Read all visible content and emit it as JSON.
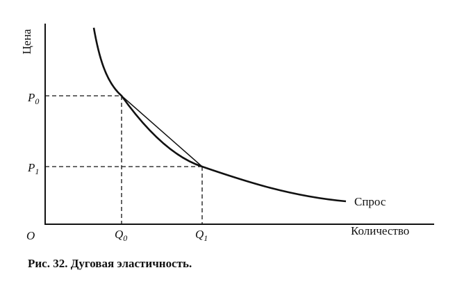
{
  "axes": {
    "y_label": "Цена",
    "x_label": "Количество",
    "origin_label": "O"
  },
  "points": {
    "p0": {
      "main": "P",
      "sub": "0"
    },
    "p1": {
      "main": "P",
      "sub": "1"
    },
    "q0": {
      "main": "Q",
      "sub": "0"
    },
    "q1": {
      "main": "Q",
      "sub": "1"
    }
  },
  "curve_label": "Спрос",
  "caption": "Рис. 32. Дуговая эластичность.",
  "colors": {
    "ink": "#111111",
    "background": "#ffffff"
  }
}
